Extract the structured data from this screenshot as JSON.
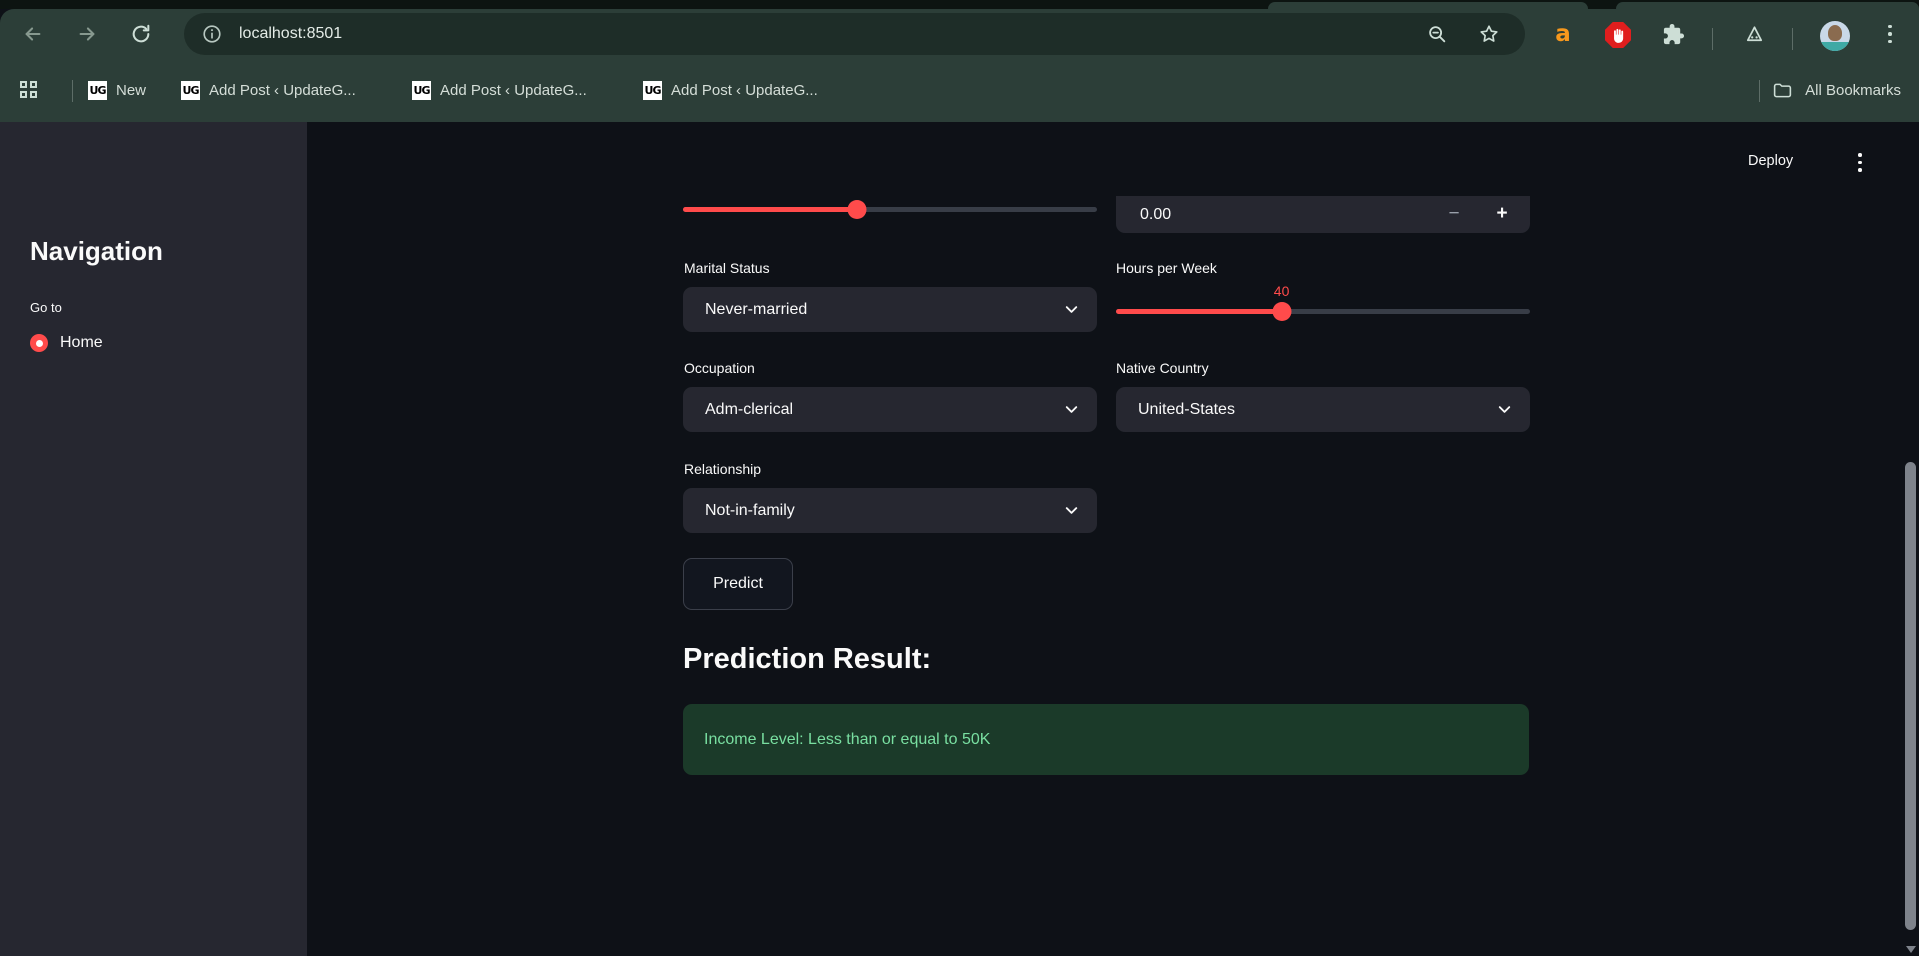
{
  "browser": {
    "toolbar": {
      "url": "localhost:8501"
    },
    "bookmarks": {
      "items": [
        {
          "favicon": "UG",
          "label": "New"
        },
        {
          "favicon": "UG",
          "label": "Add Post ‹ UpdateG..."
        },
        {
          "favicon": "UG",
          "label": "Add Post ‹ UpdateG..."
        },
        {
          "favicon": "UG",
          "label": "Add Post ‹ UpdateG..."
        }
      ],
      "all_bookmarks": "All Bookmarks"
    },
    "extensions": {
      "amazon_glyph": "a"
    }
  },
  "app": {
    "header": {
      "deploy": "Deploy"
    },
    "sidebar": {
      "title": "Navigation",
      "caption": "Go to",
      "items": [
        {
          "label": "Home",
          "selected": true
        }
      ]
    },
    "form": {
      "slider_top": {
        "fraction": 0.42
      },
      "number_input": {
        "value": "0.00",
        "minus": "−",
        "plus": "+"
      },
      "marital_status": {
        "label": "Marital Status",
        "value": "Never-married"
      },
      "hours_per_week": {
        "label": "Hours per Week",
        "value": "40",
        "fraction": 0.4
      },
      "occupation": {
        "label": "Occupation",
        "value": "Adm-clerical"
      },
      "native_country": {
        "label": "Native Country",
        "value": "United-States"
      },
      "relationship": {
        "label": "Relationship",
        "value": "Not-in-family"
      },
      "predict": "Predict"
    },
    "result": {
      "heading": "Prediction Result:",
      "message": "Income Level: Less than or equal to 50K"
    },
    "colors": {
      "accent": "#ff4b4b",
      "success_bg": "#1b3a29",
      "success_text": "#79dfa1"
    }
  }
}
